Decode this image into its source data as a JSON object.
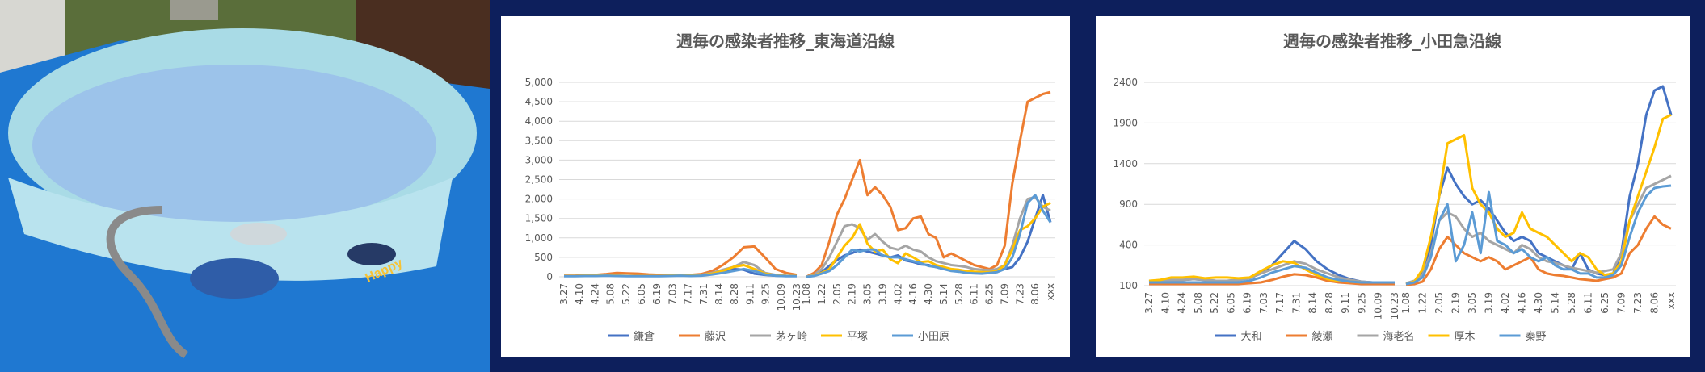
{
  "photo": {
    "label": "Happy",
    "colors": {
      "tarp": "#1f78d1",
      "pool_rim": "#a9dbe6",
      "pool_water": "#9cc3ea",
      "grass": "#5a6e3a"
    }
  },
  "chart_data": [
    {
      "type": "line",
      "title": "週毎の感染者推移_東海道沿線",
      "ylim": [
        0,
        5000
      ],
      "yticks": [
        0,
        500,
        1000,
        1500,
        2000,
        2500,
        3000,
        3500,
        4000,
        4500,
        5000
      ],
      "ytick_labels": [
        "0",
        "500",
        "1,000",
        "1,500",
        "2,000",
        "2,500",
        "3,000",
        "3,500",
        "4,000",
        "4,500",
        "5,000"
      ],
      "legend": "bottom",
      "segments": [
        {
          "categories": [
            "3.27",
            "4.10",
            "4.24",
            "5.08",
            "5.22",
            "6.05",
            "6.19",
            "7.03",
            "7.17",
            "7.31",
            "8.14",
            "8.28",
            "9.11",
            "9.25",
            "10.09",
            "10.23"
          ],
          "n": 23
        },
        {
          "categories": [
            "1.08",
            "1.22",
            "2.05",
            "2.19",
            "3.05",
            "3.19",
            "4.02",
            "4.16",
            "4.30",
            "5.14",
            "5.28",
            "6.11",
            "6.25",
            "7.09",
            "7.23",
            "8.06",
            "xxx"
          ],
          "n": 33
        }
      ],
      "series": [
        {
          "name": "鎌倉",
          "color": "#4472c4",
          "values": [
            [
              20,
              20,
              30,
              30,
              40,
              30,
              20,
              20,
              20,
              20,
              30,
              40,
              30,
              60,
              100,
              150,
              200,
              180,
              80,
              50,
              30,
              20,
              20
            ],
            [
              0,
              40,
              120,
              280,
              430,
              550,
              610,
              700,
              650,
              600,
              550,
              500,
              550,
              420,
              380,
              320,
              300,
              250,
              200,
              170,
              150,
              120,
              100,
              120,
              150,
              180,
              200,
              250,
              500,
              900,
              1500,
              2100,
              1400
            ]
          ]
        },
        {
          "name": "藤沢",
          "color": "#ed7d31",
          "values": [
            [
              30,
              30,
              40,
              50,
              70,
              100,
              90,
              80,
              60,
              50,
              40,
              40,
              50,
              70,
              150,
              300,
              500,
              760,
              780,
              500,
              200,
              100,
              50
            ],
            [
              0,
              100,
              300,
              900,
              1600,
              2000,
              2500,
              3000,
              2100,
              2300,
              2100,
              1800,
              1200,
              1250,
              1500,
              1550,
              1100,
              1000,
              500,
              600,
              500,
              400,
              300,
              250,
              200,
              300,
              800,
              2400,
              3500,
              4500,
              4600,
              4700,
              4750
            ]
          ]
        },
        {
          "name": "茅ヶ崎",
          "color": "#a5a5a5",
          "values": [
            [
              20,
              20,
              30,
              30,
              40,
              30,
              20,
              20,
              20,
              20,
              30,
              40,
              30,
              50,
              100,
              180,
              250,
              380,
              300,
              100,
              50,
              30,
              20
            ],
            [
              0,
              50,
              200,
              500,
              900,
              1300,
              1350,
              1250,
              950,
              1100,
              900,
              750,
              700,
              800,
              700,
              650,
              500,
              400,
              350,
              300,
              280,
              250,
              200,
              180,
              170,
              200,
              300,
              800,
              1500,
              2000,
              2050,
              1800,
              1700
            ]
          ]
        },
        {
          "name": "平塚",
          "color": "#ffc000",
          "values": [
            [
              20,
              20,
              30,
              30,
              40,
              30,
              20,
              20,
              20,
              20,
              30,
              40,
              30,
              40,
              80,
              150,
              250,
              300,
              200,
              80,
              40,
              20,
              20
            ],
            [
              0,
              30,
              100,
              200,
              500,
              800,
              1000,
              1350,
              850,
              650,
              700,
              450,
              350,
              600,
              500,
              380,
              400,
              300,
              250,
              200,
              180,
              150,
              130,
              120,
              120,
              150,
              300,
              700,
              1200,
              1300,
              1500,
              1800,
              1900
            ]
          ]
        },
        {
          "name": "小田原",
          "color": "#5b9bd5",
          "values": [
            [
              15,
              15,
              20,
              20,
              30,
              20,
              15,
              15,
              15,
              15,
              20,
              30,
              20,
              30,
              60,
              100,
              150,
              200,
              150,
              60,
              30,
              15,
              15
            ],
            [
              0,
              20,
              80,
              150,
              300,
              500,
              700,
              650,
              700,
              700,
              550,
              500,
              500,
              450,
              400,
              350,
              280,
              250,
              200,
              150,
              130,
              100,
              90,
              80,
              100,
              120,
              200,
              500,
              1100,
              1900,
              2100,
              1700,
              1400
            ]
          ]
        }
      ]
    },
    {
      "type": "line",
      "title": "週毎の感染者推移_小田急沿線",
      "ylim": [
        -100,
        2400
      ],
      "yticks": [
        -100,
        400,
        900,
        1400,
        1900,
        2400
      ],
      "ytick_labels": [
        "-100",
        "400",
        "900",
        "1400",
        "1900",
        "2400"
      ],
      "legend": "bottom",
      "segments": [
        {
          "categories": [
            "3.27",
            "4.10",
            "4.24",
            "5.08",
            "5.22",
            "6.05",
            "6.19",
            "7.03",
            "7.17",
            "7.31",
            "8.14",
            "8.28",
            "9.11",
            "9.25",
            "10.09",
            "10.23"
          ],
          "n": 23
        },
        {
          "categories": [
            "1.08",
            "1.22",
            "2.05",
            "2.19",
            "3.05",
            "3.19",
            "4.02",
            "4.16",
            "4.30",
            "5.14",
            "5.28",
            "6.11",
            "6.25",
            "7.09",
            "7.23",
            "8.06",
            "xxx"
          ],
          "n": 33
        }
      ],
      "series": [
        {
          "name": "大和",
          "color": "#4472c4",
          "values": [
            [
              -50,
              -40,
              -30,
              -30,
              -20,
              -30,
              -40,
              -40,
              -30,
              -10,
              50,
              150,
              300,
              450,
              350,
              200,
              100,
              30,
              -20,
              -50,
              -60,
              -60,
              -60
            ],
            [
              -80,
              -50,
              50,
              400,
              1000,
              1350,
              1150,
              1000,
              900,
              950,
              850,
              700,
              550,
              450,
              500,
              450,
              300,
              250,
              200,
              150,
              100,
              300,
              100,
              50,
              30,
              50,
              300,
              1000,
              1400,
              2000,
              2300,
              2350,
              2000
            ]
          ]
        },
        {
          "name": "綾瀬",
          "color": "#ed7d31",
          "values": [
            [
              -80,
              -80,
              -80,
              -80,
              -80,
              -80,
              -80,
              -80,
              -80,
              -70,
              -60,
              -30,
              10,
              40,
              30,
              0,
              -40,
              -60,
              -70,
              -80,
              -80,
              -80,
              -80
            ],
            [
              -90,
              -80,
              -50,
              100,
              350,
              500,
              400,
              300,
              250,
              200,
              250,
              200,
              100,
              150,
              200,
              250,
              100,
              50,
              30,
              20,
              0,
              -20,
              -30,
              -40,
              -20,
              0,
              50,
              300,
              400,
              600,
              750,
              650,
              600
            ]
          ]
        },
        {
          "name": "海老名",
          "color": "#a5a5a5",
          "values": [
            [
              -50,
              -40,
              -30,
              -30,
              -20,
              -30,
              -40,
              -40,
              -30,
              -10,
              50,
              100,
              150,
              200,
              170,
              100,
              50,
              0,
              -30,
              -50,
              -60,
              -60,
              -60
            ],
            [
              -70,
              -40,
              30,
              300,
              700,
              800,
              750,
              600,
              500,
              550,
              450,
              400,
              350,
              300,
              400,
              350,
              250,
              200,
              180,
              150,
              120,
              100,
              80,
              60,
              80,
              100,
              300,
              700,
              900,
              1100,
              1150,
              1200,
              1250
            ]
          ]
        },
        {
          "name": "厚木",
          "color": "#ffc000",
          "values": [
            [
              -40,
              -30,
              0,
              0,
              10,
              -10,
              0,
              0,
              -10,
              0,
              80,
              150,
              200,
              180,
              100,
              30,
              -20,
              -40,
              -50,
              -60,
              -60,
              -60,
              -60
            ],
            [
              -80,
              -50,
              100,
              500,
              1000,
              1650,
              1700,
              1750,
              1100,
              900,
              800,
              600,
              500,
              550,
              800,
              600,
              550,
              500,
              400,
              300,
              200,
              300,
              250,
              100,
              30,
              50,
              200,
              700,
              1000,
              1300,
              1600,
              1950,
              2000
            ]
          ]
        },
        {
          "name": "秦野",
          "color": "#5b9bd5",
          "values": [
            [
              -60,
              -60,
              -60,
              -60,
              -60,
              -60,
              -60,
              -60,
              -60,
              -40,
              0,
              60,
              100,
              140,
              120,
              60,
              0,
              -30,
              -50,
              -60,
              -60,
              -60,
              -60
            ],
            [
              -80,
              -60,
              0,
              250,
              700,
              900,
              200,
              400,
              800,
              300,
              1050,
              450,
              400,
              300,
              350,
              250,
              200,
              250,
              150,
              100,
              100,
              50,
              50,
              0,
              0,
              30,
              150,
              500,
              800,
              1000,
              1100,
              1120,
              1130
            ]
          ]
        }
      ]
    }
  ]
}
